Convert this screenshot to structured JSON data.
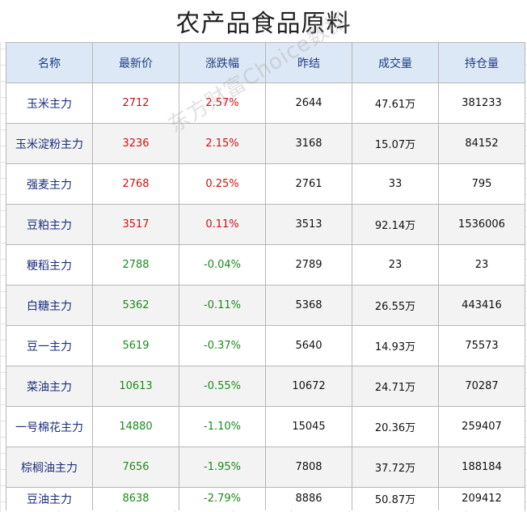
{
  "title": "农产品食品原料",
  "watermark": "东方财富Choice数据",
  "columns": [
    "名称",
    "最新价",
    "涨跌幅",
    "昨结",
    "成交量",
    "持仓量"
  ],
  "rows": [
    {
      "name": "玉米主力",
      "price": "2712",
      "change": "2.57%",
      "prev": "2644",
      "volume": "47.61万",
      "oi": "381233",
      "dir": "up"
    },
    {
      "name": "玉米淀粉主力",
      "price": "3236",
      "change": "2.15%",
      "prev": "3168",
      "volume": "15.07万",
      "oi": "84152",
      "dir": "up"
    },
    {
      "name": "强麦主力",
      "price": "2768",
      "change": "0.25%",
      "prev": "2761",
      "volume": "33",
      "oi": "795",
      "dir": "up"
    },
    {
      "name": "豆粕主力",
      "price": "3517",
      "change": "0.11%",
      "prev": "3513",
      "volume": "92.14万",
      "oi": "1536006",
      "dir": "up"
    },
    {
      "name": "粳稻主力",
      "price": "2788",
      "change": "-0.04%",
      "prev": "2789",
      "volume": "23",
      "oi": "23",
      "dir": "down"
    },
    {
      "name": "白糖主力",
      "price": "5362",
      "change": "-0.11%",
      "prev": "5368",
      "volume": "26.55万",
      "oi": "443416",
      "dir": "down"
    },
    {
      "name": "豆一主力",
      "price": "5619",
      "change": "-0.37%",
      "prev": "5640",
      "volume": "14.93万",
      "oi": "75573",
      "dir": "down"
    },
    {
      "name": "菜油主力",
      "price": "10613",
      "change": "-0.55%",
      "prev": "10672",
      "volume": "24.71万",
      "oi": "70287",
      "dir": "down"
    },
    {
      "name": "一号棉花主力",
      "price": "14880",
      "change": "-1.10%",
      "prev": "15045",
      "volume": "20.36万",
      "oi": "259407",
      "dir": "down"
    },
    {
      "name": "棕榈油主力",
      "price": "7656",
      "change": "-1.95%",
      "prev": "7808",
      "volume": "37.72万",
      "oi": "188184",
      "dir": "down"
    },
    {
      "name": "豆油主力",
      "price": "8638",
      "change": "-2.79%",
      "prev": "8886",
      "volume": "50.87万",
      "oi": "209412",
      "dir": "down"
    }
  ],
  "colors": {
    "up": "#d11010",
    "down": "#1b8a1b",
    "header_bg": "#dce8f5",
    "name_text": "#1c2f7a"
  }
}
